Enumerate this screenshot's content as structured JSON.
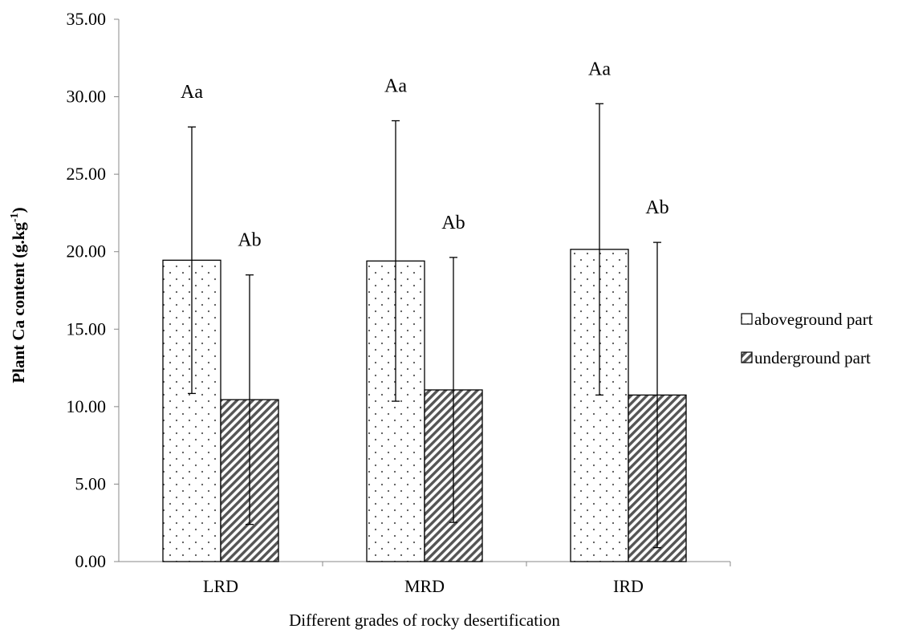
{
  "chart_data": {
    "type": "bar",
    "categories": [
      "LRD",
      "MRD",
      "IRD"
    ],
    "series": [
      {
        "name": "aboveground part",
        "values": [
          19.45,
          19.4,
          20.15
        ],
        "error": [
          8.6,
          9.05,
          9.4
        ],
        "labels": [
          "Aa",
          "Aa",
          "Aa"
        ],
        "pattern": "dots"
      },
      {
        "name": "underground part",
        "values": [
          10.45,
          11.08,
          10.75
        ],
        "error": [
          8.05,
          8.55,
          9.85
        ],
        "labels": [
          "Ab",
          "Ab",
          "Ab"
        ],
        "pattern": "hatch"
      }
    ],
    "xlabel": "Different grades of rocky desertification",
    "ylabel": {
      "main": "Plant Ca content (g.kg",
      "sup": "-1",
      "close": ")"
    },
    "ylim": [
      0,
      35
    ],
    "yticks": [
      "0.00",
      "5.00",
      "10.00",
      "15.00",
      "20.00",
      "25.00",
      "30.00",
      "35.00"
    ],
    "grid": false,
    "legend_position": "right"
  }
}
